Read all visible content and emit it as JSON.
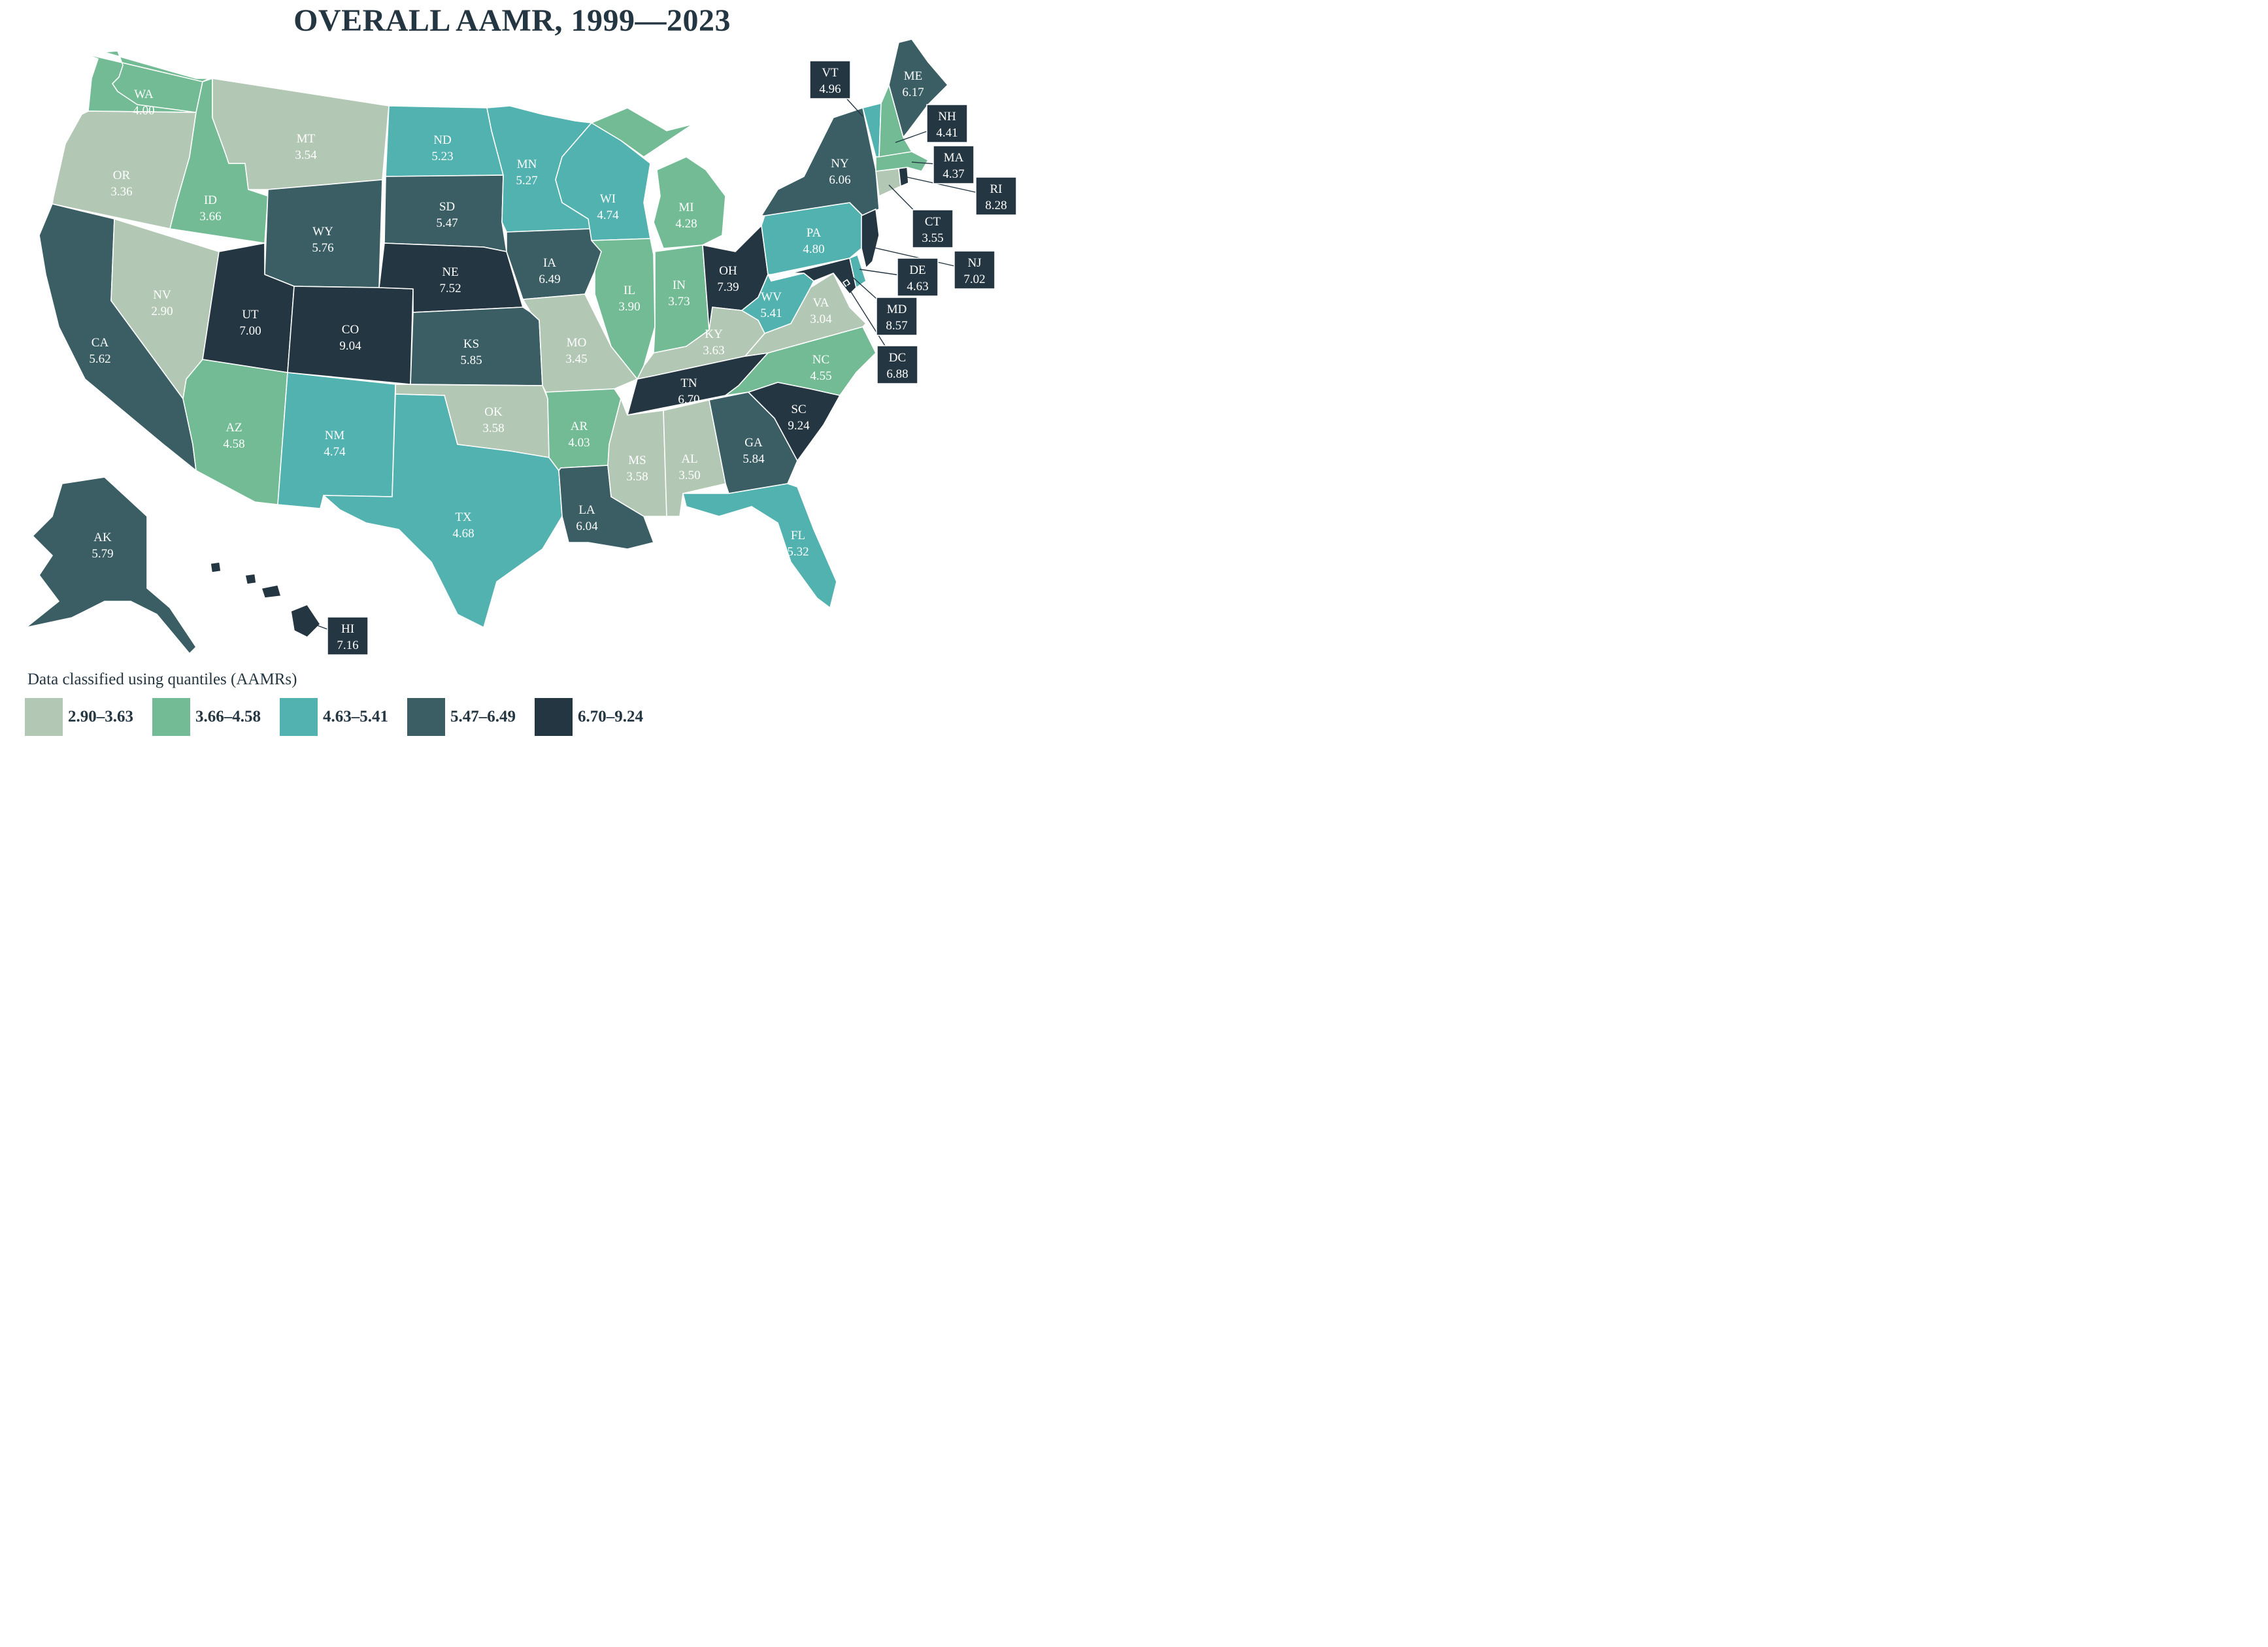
{
  "title": "OVERALL AAMR, 1999—2023",
  "legend": {
    "title": "Data classified using quantiles (AAMRs)",
    "classes": [
      {
        "label": "2.90–3.63",
        "color": "#b3c8b4"
      },
      {
        "label": "3.66–4.58",
        "color": "#72bb94"
      },
      {
        "label": "4.63–5.41",
        "color": "#52b2b0"
      },
      {
        "label": "5.47–6.49",
        "color": "#3a5e64"
      },
      {
        "label": "6.70–9.24",
        "color": "#243642"
      }
    ]
  },
  "states": {
    "WA": {
      "abbr": "WA",
      "value": "4.00",
      "class": 1
    },
    "OR": {
      "abbr": "OR",
      "value": "3.36",
      "class": 0
    },
    "CA": {
      "abbr": "CA",
      "value": "5.62",
      "class": 3
    },
    "ID": {
      "abbr": "ID",
      "value": "3.66",
      "class": 1
    },
    "NV": {
      "abbr": "NV",
      "value": "2.90",
      "class": 0
    },
    "MT": {
      "abbr": "MT",
      "value": "3.54",
      "class": 0
    },
    "WY": {
      "abbr": "WY",
      "value": "5.76",
      "class": 3
    },
    "UT": {
      "abbr": "UT",
      "value": "7.00",
      "class": 4
    },
    "AZ": {
      "abbr": "AZ",
      "value": "4.58",
      "class": 1
    },
    "CO": {
      "abbr": "CO",
      "value": "9.04",
      "class": 4
    },
    "NM": {
      "abbr": "NM",
      "value": "4.74",
      "class": 2
    },
    "ND": {
      "abbr": "ND",
      "value": "5.23",
      "class": 2
    },
    "SD": {
      "abbr": "SD",
      "value": "5.47",
      "class": 3
    },
    "NE": {
      "abbr": "NE",
      "value": "7.52",
      "class": 4
    },
    "KS": {
      "abbr": "KS",
      "value": "5.85",
      "class": 3
    },
    "OK": {
      "abbr": "OK",
      "value": "3.58",
      "class": 0
    },
    "TX": {
      "abbr": "TX",
      "value": "4.68",
      "class": 2
    },
    "MN": {
      "abbr": "MN",
      "value": "5.27",
      "class": 2
    },
    "IA": {
      "abbr": "IA",
      "value": "6.49",
      "class": 3
    },
    "MO": {
      "abbr": "MO",
      "value": "3.45",
      "class": 0
    },
    "AR": {
      "abbr": "AR",
      "value": "4.03",
      "class": 1
    },
    "LA": {
      "abbr": "LA",
      "value": "6.04",
      "class": 3
    },
    "WI": {
      "abbr": "WI",
      "value": "4.74",
      "class": 2
    },
    "IL": {
      "abbr": "IL",
      "value": "3.90",
      "class": 1
    },
    "MI": {
      "abbr": "MI",
      "value": "4.28",
      "class": 1
    },
    "IN": {
      "abbr": "IN",
      "value": "3.73",
      "class": 1
    },
    "OH": {
      "abbr": "OH",
      "value": "7.39",
      "class": 4
    },
    "KY": {
      "abbr": "KY",
      "value": "3.63",
      "class": 0
    },
    "TN": {
      "abbr": "TN",
      "value": "6.70",
      "class": 4
    },
    "MS": {
      "abbr": "MS",
      "value": "3.58",
      "class": 0
    },
    "AL": {
      "abbr": "AL",
      "value": "3.50",
      "class": 0
    },
    "GA": {
      "abbr": "GA",
      "value": "5.84",
      "class": 3
    },
    "FL": {
      "abbr": "FL",
      "value": "5.32",
      "class": 2
    },
    "SC": {
      "abbr": "SC",
      "value": "9.24",
      "class": 4
    },
    "NC": {
      "abbr": "NC",
      "value": "4.55",
      "class": 1
    },
    "VA": {
      "abbr": "VA",
      "value": "3.04",
      "class": 0
    },
    "WV": {
      "abbr": "WV",
      "value": "5.41",
      "class": 2
    },
    "PA": {
      "abbr": "PA",
      "value": "4.80",
      "class": 2
    },
    "NY": {
      "abbr": "NY",
      "value": "6.06",
      "class": 3
    },
    "ME": {
      "abbr": "ME",
      "value": "6.17",
      "class": 3
    },
    "VT": {
      "abbr": "VT",
      "value": "4.96",
      "class": 2
    },
    "NH": {
      "abbr": "NH",
      "value": "4.41",
      "class": 1
    },
    "MA": {
      "abbr": "MA",
      "value": "4.37",
      "class": 1
    },
    "RI": {
      "abbr": "RI",
      "value": "8.28",
      "class": 4
    },
    "CT": {
      "abbr": "CT",
      "value": "3.55",
      "class": 0
    },
    "NJ": {
      "abbr": "NJ",
      "value": "7.02",
      "class": 4
    },
    "DE": {
      "abbr": "DE",
      "value": "4.63",
      "class": 2
    },
    "MD": {
      "abbr": "MD",
      "value": "8.57",
      "class": 4
    },
    "DC": {
      "abbr": "DC",
      "value": "6.88",
      "class": 4
    },
    "AK": {
      "abbr": "AK",
      "value": "5.79",
      "class": 3
    },
    "HI": {
      "abbr": "HI",
      "value": "7.16",
      "class": 4
    }
  }
}
